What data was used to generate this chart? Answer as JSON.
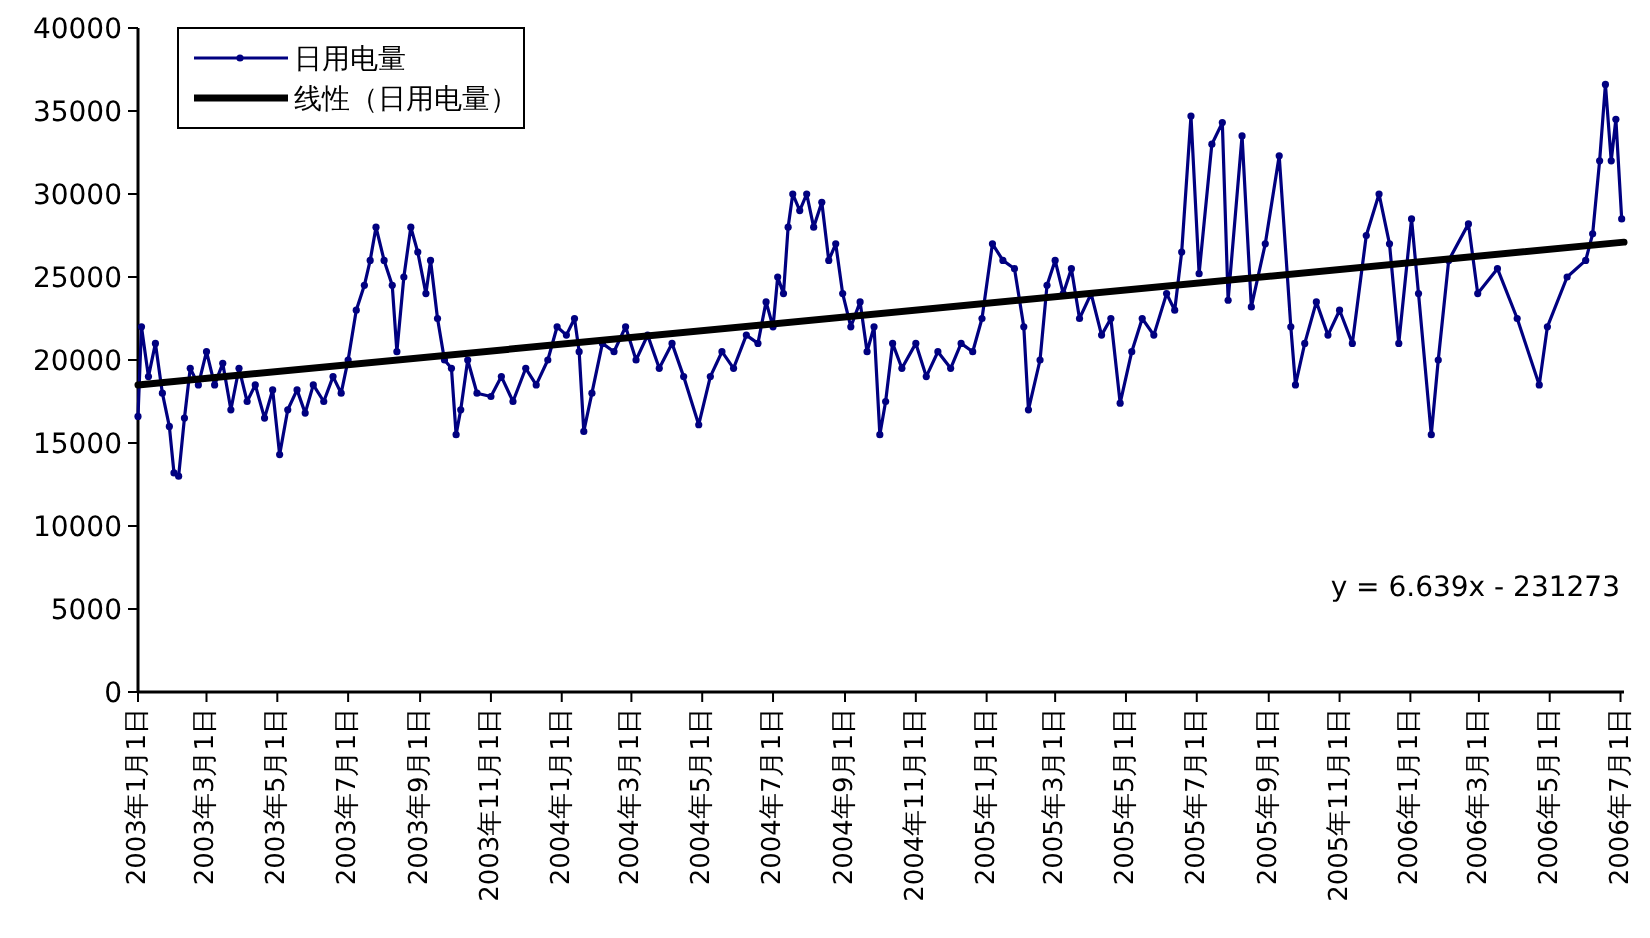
{
  "chart_data": {
    "type": "line",
    "series": [
      {
        "name": "日用电量",
        "color": "#000080",
        "marker": "circle",
        "x": [
          "2003-01-01",
          "2003-01-04",
          "2003-01-10",
          "2003-01-16",
          "2003-01-22",
          "2003-01-28",
          "2003-02-01",
          "2003-02-05",
          "2003-02-10",
          "2003-02-15",
          "2003-02-22",
          "2003-03-01",
          "2003-03-08",
          "2003-03-15",
          "2003-03-22",
          "2003-03-29",
          "2003-04-05",
          "2003-04-12",
          "2003-04-20",
          "2003-04-27",
          "2003-05-03",
          "2003-05-10",
          "2003-05-18",
          "2003-05-25",
          "2003-06-01",
          "2003-06-10",
          "2003-06-18",
          "2003-06-25",
          "2003-07-01",
          "2003-07-08",
          "2003-07-15",
          "2003-07-20",
          "2003-07-25",
          "2003-08-01",
          "2003-08-08",
          "2003-08-12",
          "2003-08-18",
          "2003-08-24",
          "2003-08-30",
          "2003-09-06",
          "2003-09-10",
          "2003-09-16",
          "2003-09-22",
          "2003-09-28",
          "2003-10-02",
          "2003-10-06",
          "2003-10-12",
          "2003-10-20",
          "2003-11-01",
          "2003-11-10",
          "2003-11-20",
          "2003-12-01",
          "2003-12-10",
          "2003-12-20",
          "2003-12-28",
          "2004-01-05",
          "2004-01-12",
          "2004-01-16",
          "2004-01-20",
          "2004-01-27",
          "2004-02-05",
          "2004-02-15",
          "2004-02-25",
          "2004-03-05",
          "2004-03-15",
          "2004-03-25",
          "2004-04-05",
          "2004-04-15",
          "2004-04-28",
          "2004-05-08",
          "2004-05-18",
          "2004-05-28",
          "2004-06-08",
          "2004-06-18",
          "2004-06-25",
          "2004-07-01",
          "2004-07-05",
          "2004-07-10",
          "2004-07-14",
          "2004-07-18",
          "2004-07-24",
          "2004-07-30",
          "2004-08-05",
          "2004-08-12",
          "2004-08-18",
          "2004-08-24",
          "2004-08-30",
          "2004-09-06",
          "2004-09-14",
          "2004-09-20",
          "2004-09-26",
          "2004-10-01",
          "2004-10-06",
          "2004-10-12",
          "2004-10-20",
          "2004-11-01",
          "2004-11-10",
          "2004-11-20",
          "2004-12-01",
          "2004-12-10",
          "2004-12-20",
          "2004-12-28",
          "2005-01-06",
          "2005-01-15",
          "2005-01-25",
          "2005-02-02",
          "2005-02-06",
          "2005-02-16",
          "2005-02-22",
          "2005-03-01",
          "2005-03-08",
          "2005-03-15",
          "2005-03-22",
          "2005-04-01",
          "2005-04-10",
          "2005-04-18",
          "2005-04-26",
          "2005-05-06",
          "2005-05-15",
          "2005-05-25",
          "2005-06-05",
          "2005-06-12",
          "2005-06-18",
          "2005-06-26",
          "2005-07-03",
          "2005-07-14",
          "2005-07-23",
          "2005-07-28",
          "2005-08-09",
          "2005-08-17",
          "2005-08-29",
          "2005-09-10",
          "2005-09-20",
          "2005-09-24",
          "2005-10-02",
          "2005-10-12",
          "2005-10-22",
          "2005-11-01",
          "2005-11-12",
          "2005-11-24",
          "2005-12-05",
          "2005-12-14",
          "2005-12-22",
          "2006-01-02",
          "2006-01-08",
          "2006-01-19",
          "2006-01-25",
          "2006-02-03",
          "2006-02-20",
          "2006-02-28",
          "2006-03-17",
          "2006-04-03",
          "2006-04-22",
          "2006-04-29",
          "2006-05-16",
          "2006-06-01",
          "2006-06-07",
          "2006-06-13",
          "2006-06-18",
          "2006-06-23",
          "2006-06-27",
          "2006-07-02"
        ],
        "values": [
          16600,
          22000,
          19000,
          21000,
          18000,
          16000,
          13200,
          13000,
          16500,
          19500,
          18500,
          20500,
          18500,
          19800,
          17000,
          19500,
          17500,
          18500,
          16500,
          18200,
          14300,
          17000,
          18200,
          16800,
          18500,
          17500,
          19000,
          18000,
          20000,
          23000,
          24500,
          26000,
          28000,
          26000,
          24500,
          20500,
          25000,
          28000,
          26500,
          24000,
          26000,
          22500,
          20000,
          19500,
          15500,
          17000,
          20000,
          18000,
          17800,
          19000,
          17500,
          19500,
          18500,
          20000,
          22000,
          21500,
          22500,
          20500,
          15700,
          18000,
          21000,
          20500,
          22000,
          20000,
          21500,
          19500,
          21000,
          19000,
          16100,
          19000,
          20500,
          19500,
          21500,
          21000,
          23500,
          22000,
          25000,
          24000,
          28000,
          30000,
          29000,
          30000,
          28000,
          29500,
          26000,
          27000,
          24000,
          22000,
          23500,
          20500,
          22000,
          15500,
          17500,
          21000,
          19500,
          21000,
          19000,
          20500,
          19500,
          21000,
          20500,
          22500,
          27000,
          26000,
          25500,
          22000,
          17000,
          20000,
          24500,
          26000,
          24000,
          25500,
          22500,
          24000,
          21500,
          22500,
          17400,
          20500,
          22500,
          21500,
          24000,
          23000,
          26500,
          34700,
          25200,
          33000,
          34300,
          23600,
          33500,
          23200,
          27000,
          32300,
          22000,
          18500,
          21000,
          23500,
          21500,
          23000,
          21000,
          27500,
          30000,
          27000,
          21000,
          28500,
          24000,
          15500,
          20000,
          26000,
          28200,
          24000,
          25500,
          22500,
          18500,
          22000,
          25000,
          26000,
          27600,
          32000,
          36600,
          32000,
          34500,
          28500
        ]
      },
      {
        "name": "线性（日用电量）",
        "color": "#000000",
        "marker": "none",
        "x": [
          "2003-01-01",
          "2006-07-04"
        ],
        "values": [
          18500,
          27100
        ]
      }
    ],
    "xlim": [
      "2003-01-01",
      "2006-07-04"
    ],
    "xticks": [
      {
        "value": "2003-01-01",
        "label": "2003年1月1日"
      },
      {
        "value": "2003-03-01",
        "label": "2003年3月1日"
      },
      {
        "value": "2003-05-01",
        "label": "2003年5月1日"
      },
      {
        "value": "2003-07-01",
        "label": "2003年7月1日"
      },
      {
        "value": "2003-09-01",
        "label": "2003年9月1日"
      },
      {
        "value": "2003-11-01",
        "label": "2003年11月1日"
      },
      {
        "value": "2004-01-01",
        "label": "2004年1月1日"
      },
      {
        "value": "2004-03-01",
        "label": "2004年3月1日"
      },
      {
        "value": "2004-05-01",
        "label": "2004年5月1日"
      },
      {
        "value": "2004-07-01",
        "label": "2004年7月1日"
      },
      {
        "value": "2004-09-01",
        "label": "2004年9月1日"
      },
      {
        "value": "2004-11-01",
        "label": "2004年11月1日"
      },
      {
        "value": "2005-01-01",
        "label": "2005年1月1日"
      },
      {
        "value": "2005-03-01",
        "label": "2005年3月1日"
      },
      {
        "value": "2005-05-01",
        "label": "2005年5月1日"
      },
      {
        "value": "2005-07-01",
        "label": "2005年7月1日"
      },
      {
        "value": "2005-09-01",
        "label": "2005年9月1日"
      },
      {
        "value": "2005-11-01",
        "label": "2005年11月1日"
      },
      {
        "value": "2006-01-01",
        "label": "2006年1月1日"
      },
      {
        "value": "2006-03-01",
        "label": "2006年3月1日"
      },
      {
        "value": "2006-05-01",
        "label": "2006年5月1日"
      },
      {
        "value": "2006-07-01",
        "label": "2006年7月1日"
      }
    ],
    "ylim": [
      0,
      40000
    ],
    "yticks": [
      0,
      5000,
      10000,
      15000,
      20000,
      25000,
      30000,
      35000,
      40000
    ],
    "annotations": [
      "y = 6.639x - 231273"
    ],
    "legend": "top left",
    "grid": false
  }
}
